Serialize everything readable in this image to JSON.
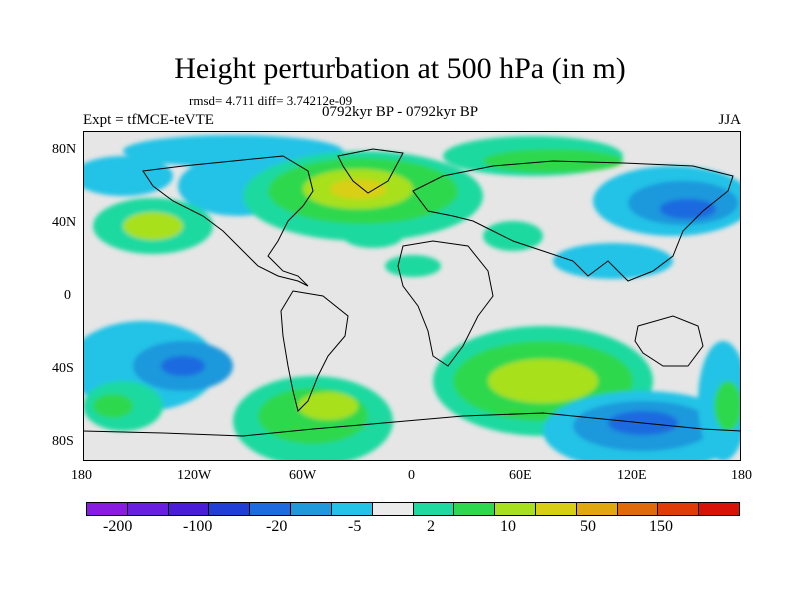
{
  "title": "Height perturbation at 500 hPa (in m)",
  "stats": "rmsd= 4.711 diff= 3.74212e-09",
  "experiment": "Expt = tfMCE-teVTE",
  "period": "0792kyr BP - 0792kyr BP",
  "season": "JJA",
  "lat_labels": [
    "80N",
    "40N",
    "0",
    "40S",
    "80S"
  ],
  "lon_labels": [
    "180",
    "120W",
    "60W",
    "0",
    "60E",
    "120E",
    "180"
  ],
  "colorbar": {
    "colors": [
      "#8a1be0",
      "#6a1ee0",
      "#4a1ed8",
      "#1f3fd6",
      "#1e6be0",
      "#1f98dc",
      "#22c3e6",
      "#ebebeb",
      "#1ed9a0",
      "#2ed84e",
      "#a8e01e",
      "#d8cf14",
      "#e0a80e",
      "#e06a0a",
      "#e03c08",
      "#d81208"
    ],
    "labels": [
      "-200",
      "-100",
      "-20",
      "-5",
      "2",
      "10",
      "50",
      "150"
    ]
  },
  "legend_colors": {
    "background": "#e6e6e6",
    "land_outline": "#000000",
    "pos_light": "#1ed9a0",
    "pos_mid": "#2ed84e",
    "pos_strong": "#a8e01e",
    "pos_max": "#d8cf14",
    "neg_light": "#22c3e6",
    "neg_mid": "#1f98dc",
    "neg_strong": "#1e6be0"
  }
}
